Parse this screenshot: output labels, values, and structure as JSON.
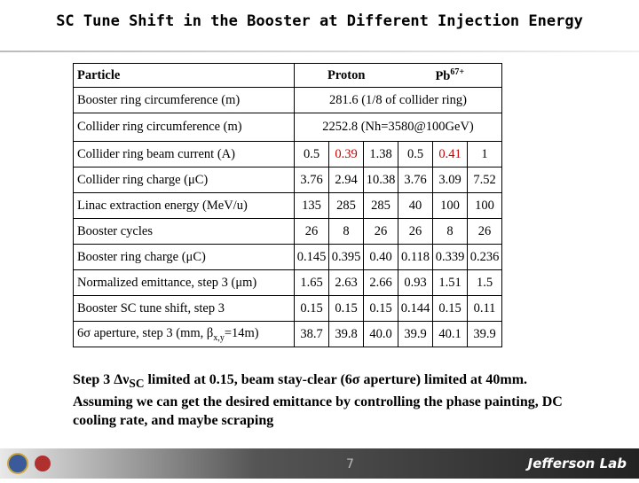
{
  "header": {
    "title": "SC Tune Shift in the Booster at Different Injection Energy"
  },
  "table": {
    "columns": {
      "label": "Particle",
      "proton": "Proton",
      "lead": "Pb",
      "lead_charge": "67+"
    },
    "highlight_color": "#cc0000",
    "rows": [
      {
        "label": "Booster ring circumference (m)",
        "span": "281.6 (1/8 of collider ring)"
      },
      {
        "label": "Collider ring circumference (m)",
        "span": "2252.8 (Nh=3580@100GeV)"
      },
      {
        "label": "Collider ring beam current (A)",
        "values": [
          "0.5",
          "0.39",
          "1.38",
          "0.5",
          "0.41",
          "1"
        ],
        "highlight": [
          false,
          true,
          false,
          false,
          true,
          false
        ]
      },
      {
        "label": "Collider ring charge (μC)",
        "values": [
          "3.76",
          "2.94",
          "10.38",
          "3.76",
          "3.09",
          "7.52"
        ]
      },
      {
        "label": "Linac extraction energy (MeV/u)",
        "values": [
          "135",
          "285",
          "285",
          "40",
          "100",
          "100"
        ]
      },
      {
        "label": "Booster cycles",
        "values": [
          "26",
          "8",
          "26",
          "26",
          "8",
          "26"
        ]
      },
      {
        "label": "Booster ring charge (μC)",
        "values": [
          "0.145",
          "0.395",
          "0.40",
          "0.118",
          "0.339",
          "0.236"
        ]
      },
      {
        "label": "Normalized emittance, step 3 (μm)",
        "values": [
          "1.65",
          "2.63",
          "2.66",
          "0.93",
          "1.51",
          "1.5"
        ]
      },
      {
        "label": "Booster SC tune shift, step 3",
        "values": [
          "0.15",
          "0.15",
          "0.15",
          "0.144",
          "0.15",
          "0.11"
        ]
      },
      {
        "label": "6σ aperture, step 3 (mm, β",
        "label_sub": "x,y",
        "label_end": "=14m)",
        "values": [
          "38.7",
          "39.8",
          "40.0",
          "39.9",
          "40.1",
          "39.9"
        ]
      }
    ]
  },
  "note": {
    "start": "Step 3 Δν",
    "sub": "SC",
    "end": " limited at 0.15, beam stay-clear (6σ aperture) limited at 40mm. Assuming we can get the desired emittance by controlling the phase painting, DC cooling rate, and maybe scraping"
  },
  "footer": {
    "page": "7",
    "logo": "Jefferson Lab"
  }
}
